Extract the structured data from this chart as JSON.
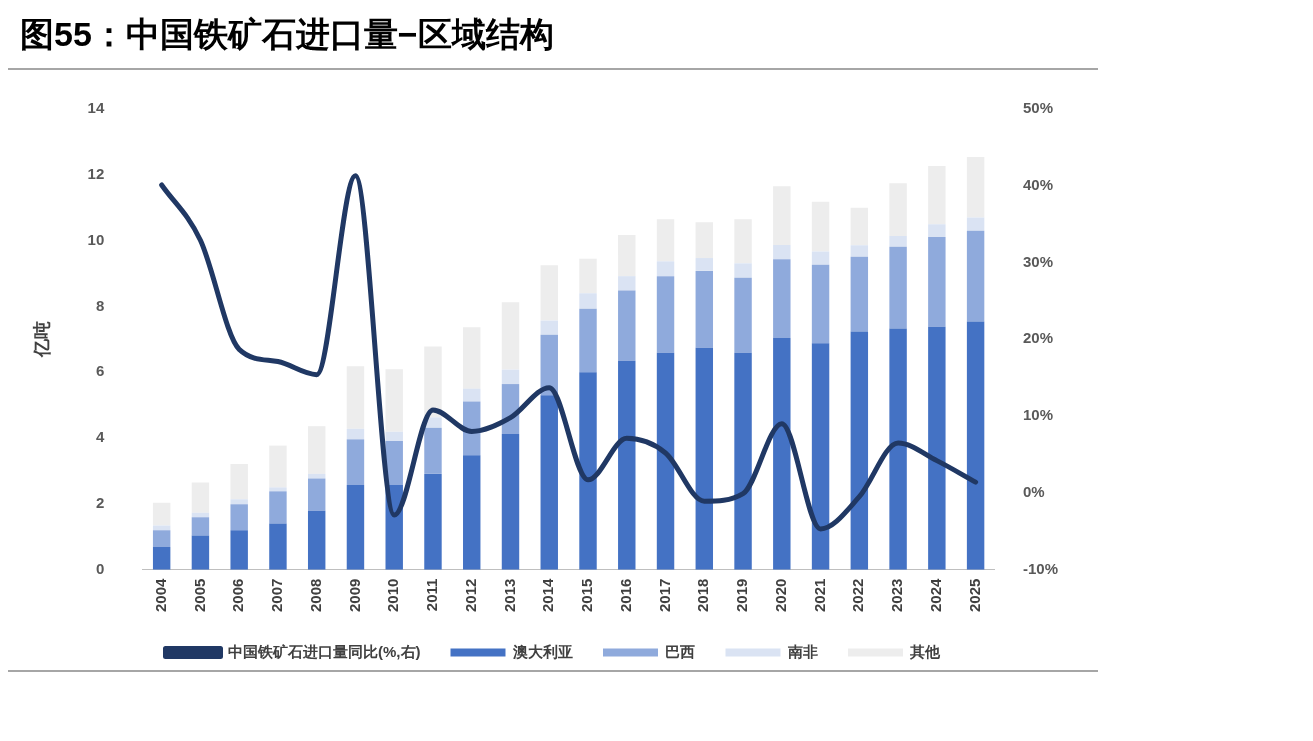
{
  "chart_data": {
    "type": "bar",
    "title": "图55：中国铁矿石进口量−区域结构",
    "ylabel": "亿吨",
    "stacked": true,
    "categories": [
      "2004",
      "2005",
      "2006",
      "2007",
      "2008",
      "2009",
      "2010",
      "2011",
      "2012",
      "2013",
      "2014",
      "2015",
      "2016",
      "2017",
      "2018",
      "2019",
      "2020",
      "2021",
      "2022",
      "2023",
      "2024",
      "2025"
    ],
    "series": [
      {
        "name": "澳大利亚",
        "color": "#4472c4",
        "values": [
          0.69,
          1.04,
          1.2,
          1.4,
          1.79,
          2.57,
          2.57,
          2.91,
          3.48,
          4.12,
          5.3,
          6.0,
          6.35,
          6.59,
          6.74,
          6.59,
          7.04,
          6.88,
          7.24,
          7.33,
          7.38,
          7.54
        ]
      },
      {
        "name": "巴西",
        "color": "#8faadc",
        "values": [
          0.51,
          0.55,
          0.79,
          0.98,
          0.98,
          1.39,
          1.34,
          1.4,
          1.63,
          1.52,
          1.84,
          1.93,
          2.13,
          2.33,
          2.34,
          2.28,
          2.39,
          2.39,
          2.27,
          2.48,
          2.73,
          2.76
        ]
      },
      {
        "name": "南非",
        "color": "#dae3f3",
        "values": [
          0.14,
          0.14,
          0.15,
          0.12,
          0.14,
          0.32,
          0.28,
          0.32,
          0.39,
          0.44,
          0.43,
          0.47,
          0.44,
          0.45,
          0.39,
          0.44,
          0.44,
          0.4,
          0.35,
          0.33,
          0.39,
          0.4
        ]
      },
      {
        "name": "其他",
        "color": "#ededed",
        "values": [
          0.69,
          0.92,
          1.07,
          1.27,
          1.45,
          1.9,
          1.9,
          2.15,
          1.87,
          2.05,
          1.68,
          1.05,
          1.25,
          1.28,
          1.09,
          1.34,
          1.78,
          1.51,
          1.14,
          1.6,
          1.77,
          1.84
        ]
      },
      {
        "name": "中国铁矿石进口量同比(%,右)",
        "type": "line",
        "axis": "y2",
        "color": "#203864",
        "values": [
          40.1,
          32.9,
          18.7,
          17.1,
          15.4,
          41.3,
          -2.9,
          10.8,
          8.0,
          9.8,
          13.7,
          1.7,
          7.1,
          5.2,
          -1.1,
          -0.1,
          9.0,
          -4.7,
          -0.5,
          6.5,
          4.2,
          1.4
        ]
      }
    ],
    "ylim": [
      0,
      14
    ],
    "yticks": [
      0,
      2,
      4,
      6,
      8,
      10,
      12,
      14
    ],
    "y2lim": [
      -10,
      50
    ],
    "y2ticks": [
      {
        "value": -10,
        "label": "-10%"
      },
      {
        "value": 0,
        "label": "0%"
      },
      {
        "value": 10,
        "label": "10%"
      },
      {
        "value": 20,
        "label": "20%"
      },
      {
        "value": 30,
        "label": "30%"
      },
      {
        "value": 40,
        "label": "40%"
      },
      {
        "value": 50,
        "label": "50%"
      }
    ],
    "grid": false,
    "legend": "bottom",
    "marker": "none"
  }
}
